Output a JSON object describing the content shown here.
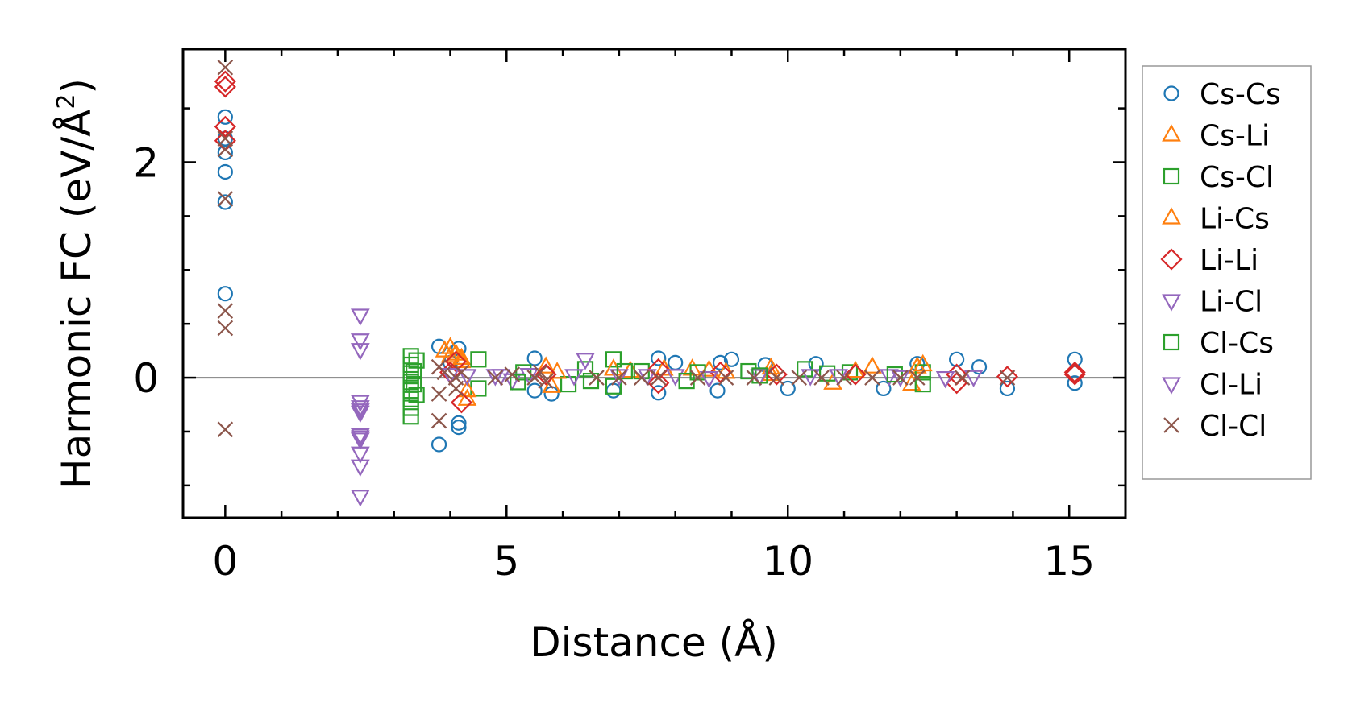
{
  "chart_data": {
    "type": "scatter",
    "title": "",
    "xlabel": "Distance (Å)",
    "ylabel_main": "Harmonic FC (eV/Å",
    "ylabel_sup": "2",
    "ylabel_close": ")",
    "xlim": [
      -0.75,
      16.0
    ],
    "ylim": [
      -1.3,
      3.05
    ],
    "xticks_major": [
      0,
      5,
      10,
      15
    ],
    "xticks_minor": [
      1,
      2,
      3,
      4,
      6,
      7,
      8,
      9,
      11,
      12,
      13,
      14
    ],
    "xtick_labels": [
      "0",
      "5",
      "10",
      "15"
    ],
    "yticks_major": [
      0,
      2
    ],
    "yticks_minor": [
      -1.0,
      -0.5,
      0.5,
      1.0,
      1.5,
      2.5
    ],
    "ytick_labels": [
      "0",
      "2"
    ],
    "zero_line": true,
    "grid": false,
    "legend_position": "outside-right",
    "series": [
      {
        "name": "Cs-Cs",
        "marker": "circle",
        "color": "#1f77b4",
        "points": [
          [
            0,
            2.42
          ],
          [
            0,
            2.22
          ],
          [
            0,
            2.09
          ],
          [
            0,
            1.91
          ],
          [
            0,
            1.63
          ],
          [
            0,
            0.78
          ],
          [
            3.8,
            0.29
          ],
          [
            3.8,
            -0.62
          ],
          [
            4.15,
            0.27
          ],
          [
            4.15,
            -0.42
          ],
          [
            4.15,
            -0.46
          ],
          [
            4.0,
            0.14
          ],
          [
            5.5,
            0.18
          ],
          [
            5.5,
            -0.12
          ],
          [
            5.8,
            -0.15
          ],
          [
            7.7,
            0.18
          ],
          [
            7.7,
            -0.14
          ],
          [
            8.0,
            0.14
          ],
          [
            6.9,
            -0.12
          ],
          [
            8.8,
            0.14
          ],
          [
            9.0,
            0.17
          ],
          [
            8.75,
            -0.12
          ],
          [
            9.6,
            0.12
          ],
          [
            10.5,
            0.13
          ],
          [
            10.0,
            -0.1
          ],
          [
            11.7,
            -0.1
          ],
          [
            12.3,
            0.13
          ],
          [
            13.0,
            0.17
          ],
          [
            13.4,
            0.1
          ],
          [
            13.9,
            -0.1
          ],
          [
            15.1,
            0.17
          ],
          [
            15.1,
            -0.05
          ]
        ]
      },
      {
        "name": "Cs-Li",
        "marker": "triangle-up",
        "color": "#ff7f0e",
        "points": [
          [
            3.9,
            0.25
          ],
          [
            4.0,
            0.28
          ],
          [
            4.1,
            0.22
          ],
          [
            4.3,
            -0.2
          ],
          [
            4.2,
            0.18
          ],
          [
            5.7,
            0.1
          ],
          [
            5.8,
            -0.08
          ],
          [
            7.2,
            0.06
          ],
          [
            8.3,
            0.08
          ],
          [
            8.6,
            0.07
          ],
          [
            9.7,
            0.09
          ],
          [
            10.8,
            -0.05
          ],
          [
            11.5,
            0.1
          ],
          [
            12.3,
            0.1
          ],
          [
            12.2,
            -0.06
          ]
        ]
      },
      {
        "name": "Cs-Cl",
        "marker": "square",
        "color": "#2ca02c",
        "points": [
          [
            3.3,
            0.2
          ],
          [
            3.3,
            0.12
          ],
          [
            3.3,
            0.04
          ],
          [
            3.3,
            -0.04
          ],
          [
            3.3,
            -0.12
          ],
          [
            3.3,
            -0.2
          ],
          [
            3.3,
            -0.28
          ],
          [
            3.3,
            -0.36
          ],
          [
            3.4,
            0.16
          ],
          [
            3.4,
            -0.16
          ],
          [
            4.5,
            0.17
          ],
          [
            4.5,
            -0.1
          ],
          [
            5.3,
            0.05
          ],
          [
            6.1,
            -0.06
          ],
          [
            6.4,
            0.08
          ],
          [
            6.9,
            0.17
          ],
          [
            6.9,
            -0.08
          ],
          [
            7.4,
            0.06
          ],
          [
            8.4,
            0.05
          ],
          [
            9.3,
            0.06
          ],
          [
            10.3,
            0.08
          ],
          [
            11.1,
            0.05
          ],
          [
            12.4,
            0.05
          ],
          [
            12.4,
            -0.06
          ]
        ]
      },
      {
        "name": "Li-Cs",
        "marker": "triangle-up",
        "color": "#ff7f0e",
        "points": [
          [
            4.0,
            0.2
          ],
          [
            4.2,
            0.15
          ],
          [
            4.3,
            -0.12
          ],
          [
            5.9,
            0.05
          ],
          [
            6.9,
            0.08
          ],
          [
            7.8,
            0.08
          ],
          [
            8.9,
            0.05
          ],
          [
            9.7,
            0.03
          ],
          [
            11.2,
            0.06
          ],
          [
            12.4,
            0.12
          ]
        ]
      },
      {
        "name": "Li-Li",
        "marker": "diamond",
        "color": "#d62728",
        "points": [
          [
            0,
            2.75
          ],
          [
            0,
            2.7
          ],
          [
            0,
            2.33
          ],
          [
            0,
            2.2
          ],
          [
            4.0,
            0.05
          ],
          [
            4.1,
            0.15
          ],
          [
            4.2,
            -0.23
          ],
          [
            5.7,
            0.03
          ],
          [
            7.7,
            0.08
          ],
          [
            7.7,
            -0.05
          ],
          [
            8.8,
            0.05
          ],
          [
            9.8,
            0.03
          ],
          [
            11.2,
            0.03
          ],
          [
            13.0,
            0.03
          ],
          [
            13.0,
            -0.05
          ],
          [
            13.9,
            0.01
          ],
          [
            15.1,
            0.05
          ],
          [
            15.1,
            0.03
          ]
        ]
      },
      {
        "name": "Li-Cl",
        "marker": "triangle-down",
        "color": "#9467bd",
        "points": [
          [
            2.4,
            0.58
          ],
          [
            2.4,
            0.35
          ],
          [
            2.4,
            0.26
          ],
          [
            2.4,
            -0.22
          ],
          [
            2.4,
            -0.27
          ],
          [
            2.4,
            -0.32
          ],
          [
            2.4,
            -0.53
          ],
          [
            2.4,
            -0.57
          ],
          [
            2.4,
            -0.7
          ],
          [
            2.4,
            -0.82
          ],
          [
            2.4,
            -1.1
          ],
          [
            4.0,
            0.03
          ],
          [
            4.3,
            0.02
          ],
          [
            4.8,
            0.02
          ],
          [
            5.1,
            -0.02
          ],
          [
            5.4,
            0.03
          ],
          [
            6.4,
            0.17
          ],
          [
            7.0,
            0.02
          ],
          [
            8.0,
            0.02
          ],
          [
            9.5,
            0.02
          ],
          [
            10.4,
            0.02
          ],
          [
            11.8,
            0.02
          ],
          [
            12.8,
            0.0
          ],
          [
            13.3,
            0.01
          ]
        ]
      },
      {
        "name": "Cl-Cs",
        "marker": "square",
        "color": "#2ca02c",
        "points": [
          [
            3.35,
            0.06
          ],
          [
            3.35,
            -0.06
          ],
          [
            5.2,
            -0.04
          ],
          [
            6.5,
            -0.03
          ],
          [
            7.1,
            0.06
          ],
          [
            8.2,
            -0.03
          ],
          [
            9.5,
            0.02
          ],
          [
            10.7,
            0.04
          ],
          [
            11.9,
            0.03
          ]
        ]
      },
      {
        "name": "Cl-Li",
        "marker": "triangle-down",
        "color": "#9467bd",
        "points": [
          [
            2.4,
            -0.22
          ],
          [
            2.4,
            -0.3
          ],
          [
            2.4,
            -0.55
          ],
          [
            4.9,
            0.02
          ],
          [
            6.2,
            0.02
          ],
          [
            7.5,
            0.02
          ],
          [
            8.6,
            0.0
          ],
          [
            10.9,
            0.02
          ],
          [
            12.0,
            0.01
          ]
        ]
      },
      {
        "name": "Cl-Cl",
        "marker": "x",
        "color": "#8c564b",
        "points": [
          [
            0,
            2.88
          ],
          [
            0,
            2.22
          ],
          [
            0,
            2.12
          ],
          [
            0,
            1.66
          ],
          [
            0,
            0.62
          ],
          [
            0,
            0.46
          ],
          [
            0,
            -0.48
          ],
          [
            3.8,
            -0.4
          ],
          [
            3.8,
            0.1
          ],
          [
            3.8,
            -0.15
          ],
          [
            3.9,
            0.05
          ],
          [
            4.1,
            0.0
          ],
          [
            4.2,
            0.05
          ],
          [
            4.1,
            -0.1
          ],
          [
            4.8,
            0.0
          ],
          [
            5.1,
            0.03
          ],
          [
            5.5,
            0.0
          ],
          [
            5.6,
            0.05
          ],
          [
            5.7,
            -0.03
          ],
          [
            6.6,
            0.0
          ],
          [
            7.0,
            0.0
          ],
          [
            7.4,
            0.0
          ],
          [
            7.7,
            0.0
          ],
          [
            8.4,
            0.0
          ],
          [
            8.9,
            0.0
          ],
          [
            9.4,
            0.0
          ],
          [
            9.8,
            0.0
          ],
          [
            10.2,
            0.0
          ],
          [
            10.6,
            0.0
          ],
          [
            11.0,
            0.0
          ],
          [
            11.5,
            0.0
          ],
          [
            12.0,
            0.0
          ],
          [
            12.3,
            0.0
          ],
          [
            13.1,
            0.0
          ],
          [
            13.9,
            0.0
          ]
        ]
      }
    ]
  }
}
